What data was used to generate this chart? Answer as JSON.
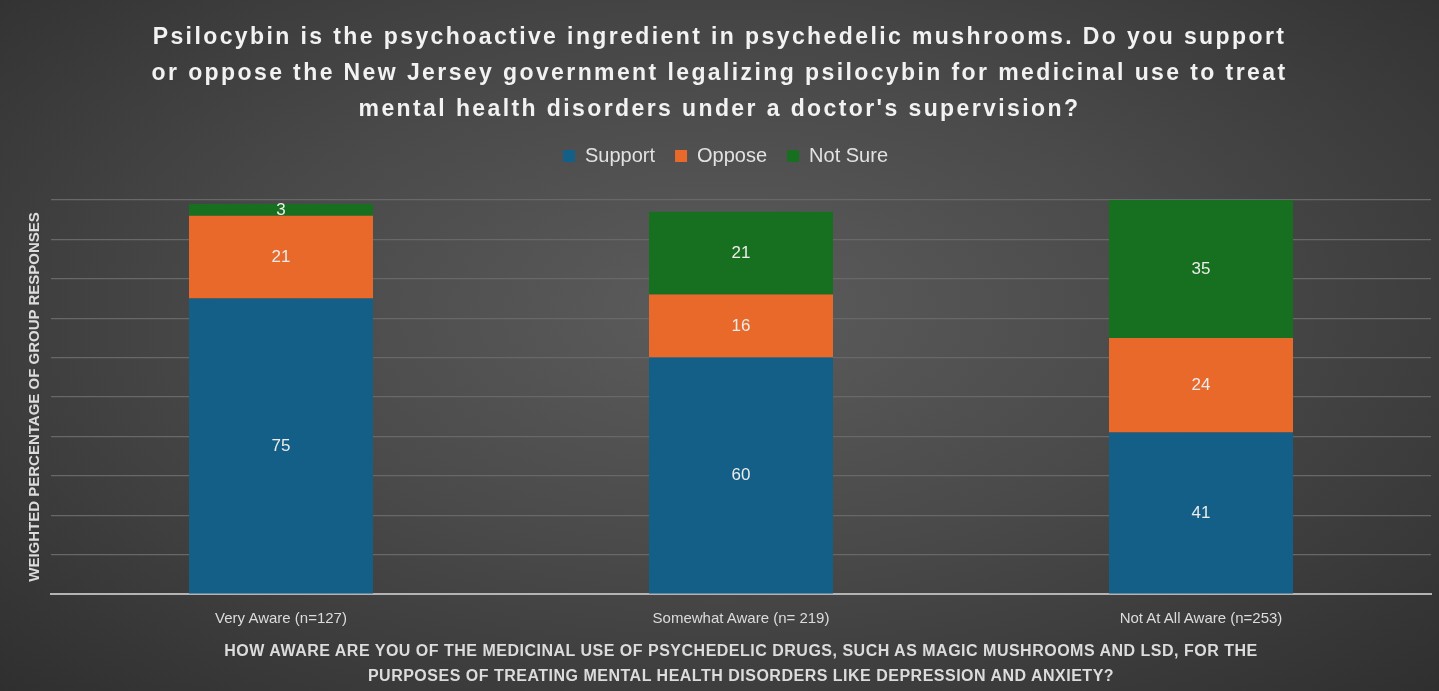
{
  "chart_data": {
    "type": "bar",
    "title": "Psilocybin is the psychoactive ingredient in psychedelic mushrooms. Do you support or oppose the New Jersey government legalizing psilocybin for medicinal use to treat mental health disorders under a doctor's supervision?",
    "xlabel": "HOW AWARE ARE YOU OF THE MEDICINAL USE OF PSYCHEDELIC DRUGS, SUCH AS MAGIC MUSHROOMS AND LSD, FOR THE PURPOSES OF TREATING MENTAL HEALTH DISORDERS LIKE DEPRESSION AND ANXIETY?",
    "ylabel": "WEIGHTED PERCENTAGE OF GROUP RESPONSES",
    "categories": [
      "Very Aware (n=127)",
      "Somewhat Aware (n= 219)",
      "Not At All Aware (n=253)"
    ],
    "stacked": true,
    "series": [
      {
        "name": "Support",
        "color": "#145f87",
        "values": [
          75,
          60,
          41
        ]
      },
      {
        "name": "Oppose",
        "color": "#e8692a",
        "values": [
          21,
          16,
          24
        ]
      },
      {
        "name": "Not Sure",
        "color": "#177020",
        "values": [
          3,
          21,
          35
        ]
      }
    ],
    "ylim": [
      0,
      100
    ],
    "yticks": [
      {
        "value": 0,
        "label": null
      },
      {
        "value": 10,
        "label": null
      },
      {
        "value": 20,
        "label": null
      },
      {
        "value": 30,
        "label": null
      },
      {
        "value": 40,
        "label": null
      },
      {
        "value": 50,
        "label": null
      },
      {
        "value": 60,
        "label": null
      },
      {
        "value": 70,
        "label": null
      },
      {
        "value": 80,
        "label": null
      },
      {
        "value": 90,
        "label": null
      },
      {
        "value": 100,
        "label": null
      }
    ],
    "tick_labels": "x",
    "grid": "y",
    "legend": "top",
    "data_labels": true
  }
}
